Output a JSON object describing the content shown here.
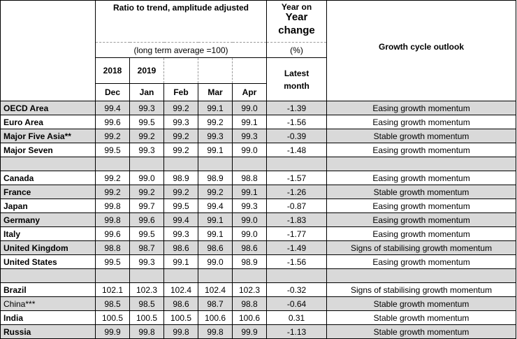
{
  "header": {
    "ratio_title": "Ratio to trend, amplitude adjusted",
    "long_term_note": "(long term average =100)",
    "yoy_line1": "Year on",
    "yoy_line2": "Year",
    "yoy_line3": "change",
    "pct": "(%)",
    "latest_line1": "Latest",
    "latest_line2": "month",
    "outlook": "Growth cycle outlook",
    "years": [
      "2018",
      "2019"
    ],
    "months": [
      "Dec",
      "Jan",
      "Feb",
      "Mar",
      "Apr"
    ]
  },
  "rows": [
    {
      "name": "OECD Area",
      "v": [
        "99.4",
        "99.3",
        "99.2",
        "99.1",
        "99.0"
      ],
      "yoy": "-1.39",
      "outlook": "Easing growth momentum"
    },
    {
      "name": "Euro Area",
      "v": [
        "99.6",
        "99.5",
        "99.3",
        "99.2",
        "99.1"
      ],
      "yoy": "-1.56",
      "outlook": "Easing growth momentum"
    },
    {
      "name": "Major Five Asia**",
      "v": [
        "99.2",
        "99.2",
        "99.2",
        "99.3",
        "99.3"
      ],
      "yoy": "-0.39",
      "outlook": "Stable growth momentum"
    },
    {
      "name": "Major Seven",
      "v": [
        "99.5",
        "99.3",
        "99.2",
        "99.1",
        "99.0"
      ],
      "yoy": "-1.48",
      "outlook": "Easing growth momentum"
    },
    {
      "name": "",
      "v": [
        "",
        "",
        "",
        "",
        ""
      ],
      "yoy": "",
      "outlook": ""
    },
    {
      "name": "Canada",
      "v": [
        "99.2",
        "99.0",
        "98.9",
        "98.9",
        "98.8"
      ],
      "yoy": "-1.57",
      "outlook": "Easing growth momentum"
    },
    {
      "name": "France",
      "v": [
        "99.2",
        "99.2",
        "99.2",
        "99.2",
        "99.1"
      ],
      "yoy": "-1.26",
      "outlook": "Stable growth momentum"
    },
    {
      "name": "Japan",
      "v": [
        "99.8",
        "99.7",
        "99.5",
        "99.4",
        "99.3"
      ],
      "yoy": "-0.87",
      "outlook": "Easing growth momentum"
    },
    {
      "name": "Germany",
      "v": [
        "99.8",
        "99.6",
        "99.4",
        "99.1",
        "99.0"
      ],
      "yoy": "-1.83",
      "outlook": "Easing growth momentum"
    },
    {
      "name": "Italy",
      "v": [
        "99.6",
        "99.5",
        "99.3",
        "99.1",
        "99.0"
      ],
      "yoy": "-1.77",
      "outlook": "Easing growth momentum"
    },
    {
      "name": "United Kingdom",
      "v": [
        "98.8",
        "98.7",
        "98.6",
        "98.6",
        "98.6"
      ],
      "yoy": "-1.49",
      "outlook": "Signs of stabilising growth momentum"
    },
    {
      "name": "United States",
      "v": [
        "99.5",
        "99.3",
        "99.1",
        "99.0",
        "98.9"
      ],
      "yoy": "-1.56",
      "outlook": "Easing growth momentum"
    },
    {
      "name": "",
      "v": [
        "",
        "",
        "",
        "",
        ""
      ],
      "yoy": "",
      "outlook": ""
    },
    {
      "name": "Brazil",
      "v": [
        "102.1",
        "102.3",
        "102.4",
        "102.4",
        "102.3"
      ],
      "yoy": "-0.32",
      "outlook": "Signs of stabilising growth momentum"
    },
    {
      "name": "China***",
      "v": [
        "98.5",
        "98.5",
        "98.6",
        "98.7",
        "98.8"
      ],
      "yoy": "-0.64",
      "outlook": "Stable growth momentum"
    },
    {
      "name": "India",
      "v": [
        "100.5",
        "100.5",
        "100.5",
        "100.6",
        "100.6"
      ],
      "yoy": "0.31",
      "outlook": "Stable growth momentum"
    },
    {
      "name": "Russia",
      "v": [
        "99.9",
        "99.8",
        "99.8",
        "99.8",
        "99.9"
      ],
      "yoy": "-1.13",
      "outlook": "Stable growth momentum"
    }
  ],
  "colors": {
    "row_shade": "#d9d9d9",
    "border": "#000000"
  }
}
